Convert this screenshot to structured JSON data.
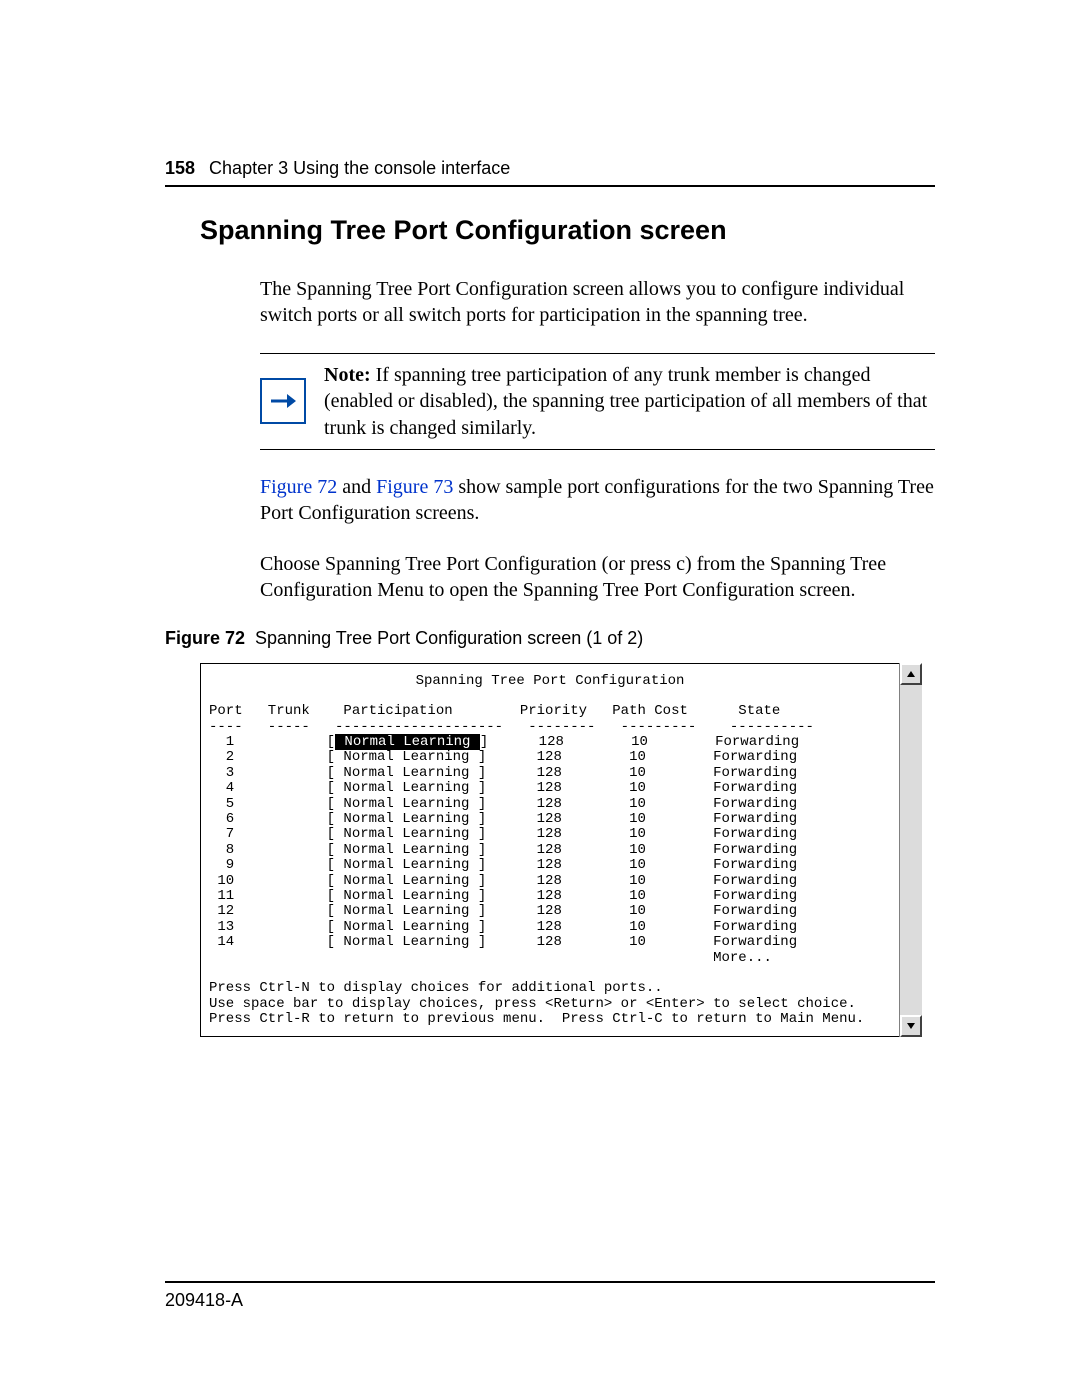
{
  "header": {
    "page_number": "158",
    "chapter": "Chapter 3  Using the console interface"
  },
  "title": "Spanning Tree Port Configuration screen",
  "para1": "The Spanning Tree Port Configuration screen allows you to configure individual switch ports or all switch ports for participation in the spanning tree.",
  "note": {
    "label": "Note:",
    "text": " If spanning tree participation of any trunk member is changed (enabled or disabled), the spanning tree participation of all members of that trunk is changed similarly."
  },
  "para2_pre": "",
  "link1": "Figure 72",
  "para2_mid": " and ",
  "link2": "Figure 73",
  "para2_post": " show sample port configurations for the two Spanning Tree Port Configuration screens.",
  "para3": "Choose Spanning Tree Port Configuration (or press c) from the Spanning Tree Configuration Menu to open the Spanning Tree Port Configuration screen.",
  "figure_caption": {
    "label": "Figure 72",
    "text": "Spanning Tree Port Configuration screen (1 of 2)"
  },
  "terminal": {
    "title": "Spanning Tree Port Configuration",
    "columns": "Port   Trunk    Participation        Priority   Path Cost      State",
    "divider": "----   -----   --------------------   --------   ---------    ----------",
    "rows": [
      {
        "port": " 1",
        "sel": true,
        "part": "Normal Learning",
        "prio": "128",
        "cost": "10",
        "state": "Forwarding"
      },
      {
        "port": " 2",
        "sel": false,
        "part": "Normal Learning",
        "prio": "128",
        "cost": "10",
        "state": "Forwarding"
      },
      {
        "port": " 3",
        "sel": false,
        "part": "Normal Learning",
        "prio": "128",
        "cost": "10",
        "state": "Forwarding"
      },
      {
        "port": " 4",
        "sel": false,
        "part": "Normal Learning",
        "prio": "128",
        "cost": "10",
        "state": "Forwarding"
      },
      {
        "port": " 5",
        "sel": false,
        "part": "Normal Learning",
        "prio": "128",
        "cost": "10",
        "state": "Forwarding"
      },
      {
        "port": " 6",
        "sel": false,
        "part": "Normal Learning",
        "prio": "128",
        "cost": "10",
        "state": "Forwarding"
      },
      {
        "port": " 7",
        "sel": false,
        "part": "Normal Learning",
        "prio": "128",
        "cost": "10",
        "state": "Forwarding"
      },
      {
        "port": " 8",
        "sel": false,
        "part": "Normal Learning",
        "prio": "128",
        "cost": "10",
        "state": "Forwarding"
      },
      {
        "port": " 9",
        "sel": false,
        "part": "Normal Learning",
        "prio": "128",
        "cost": "10",
        "state": "Forwarding"
      },
      {
        "port": "10",
        "sel": false,
        "part": "Normal Learning",
        "prio": "128",
        "cost": "10",
        "state": "Forwarding"
      },
      {
        "port": "11",
        "sel": false,
        "part": "Normal Learning",
        "prio": "128",
        "cost": "10",
        "state": "Forwarding"
      },
      {
        "port": "12",
        "sel": false,
        "part": "Normal Learning",
        "prio": "128",
        "cost": "10",
        "state": "Forwarding"
      },
      {
        "port": "13",
        "sel": false,
        "part": "Normal Learning",
        "prio": "128",
        "cost": "10",
        "state": "Forwarding"
      },
      {
        "port": "14",
        "sel": false,
        "part": "Normal Learning",
        "prio": "128",
        "cost": "10",
        "state": "Forwarding"
      }
    ],
    "more": "More...",
    "help1": "Press Ctrl-N to display choices for additional ports..",
    "help2": "Use space bar to display choices, press <Return> or <Enter> to select choice.",
    "help3": "Press Ctrl-R to return to previous menu.  Press Ctrl-C to return to Main Menu."
  },
  "footer": "209418-A",
  "colors": {
    "link": "#0033cc",
    "note_border": "#004aa5",
    "text": "#000000",
    "background": "#ffffff",
    "scrollbar_bg": "#dcdcdc"
  },
  "fonts": {
    "body_family": "Times New Roman",
    "ui_family": "Arial",
    "mono_family": "Courier New",
    "h1_size_pt": 20,
    "body_size_pt": 15,
    "caption_size_pt": 13,
    "mono_size_pt": 10
  }
}
